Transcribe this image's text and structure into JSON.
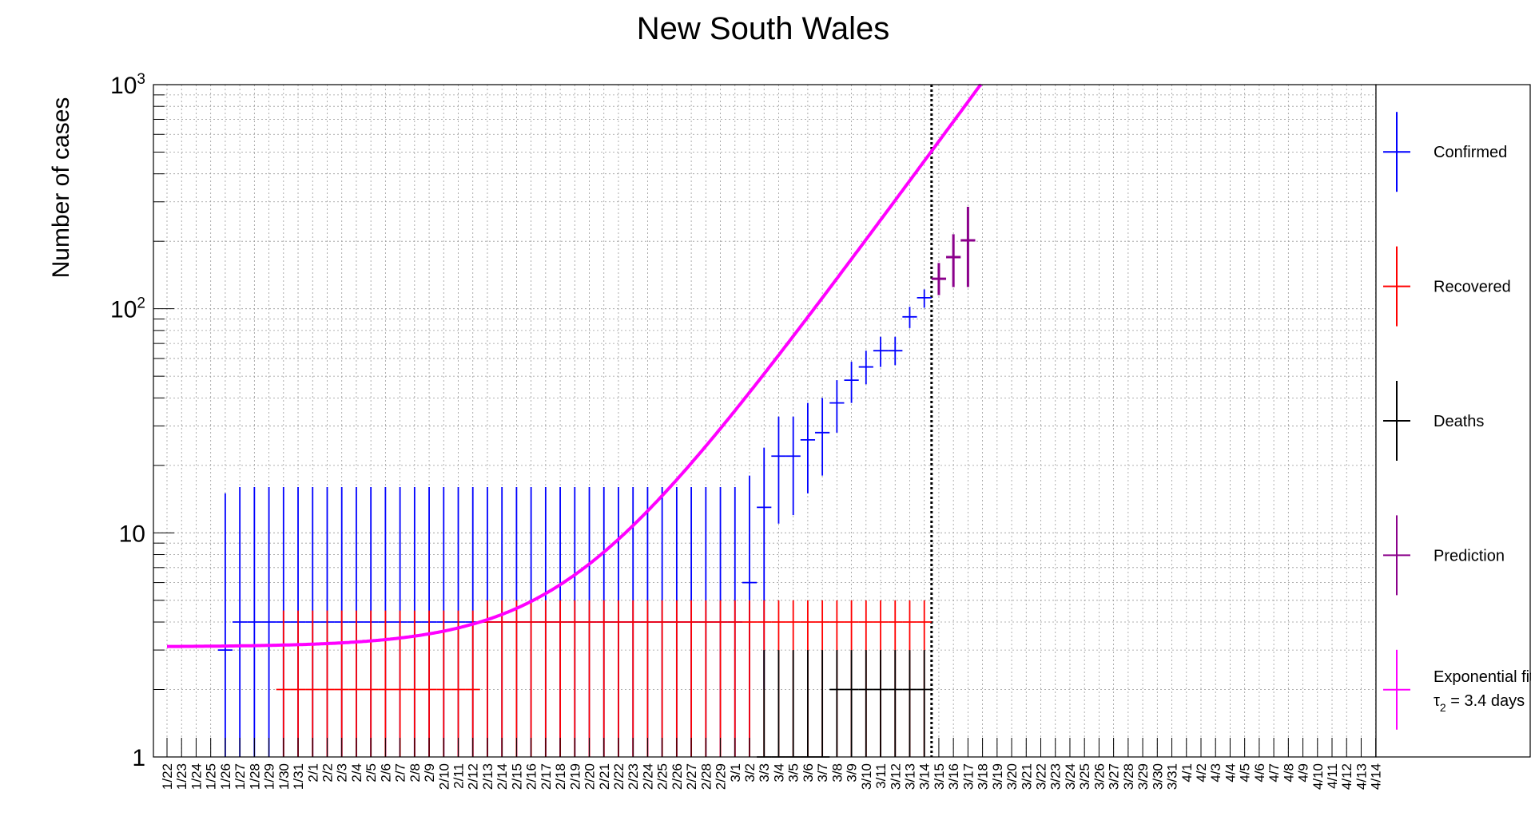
{
  "chart_data": {
    "type": "scatter",
    "title": "New South Wales",
    "ylabel": "Number of cases",
    "xlabel": "",
    "yscale": "log",
    "ylim": [
      1,
      1000
    ],
    "y_ticks": [
      {
        "value": 1,
        "base": "1",
        "exp": ""
      },
      {
        "value": 10,
        "base": "10",
        "exp": ""
      },
      {
        "value": 100,
        "base": "10",
        "exp": "2"
      },
      {
        "value": 1000,
        "base": "10",
        "exp": "3"
      }
    ],
    "grid": true,
    "legend_position": "right",
    "categories": [
      "1/22",
      "1/23",
      "1/24",
      "1/25",
      "1/26",
      "1/27",
      "1/28",
      "1/29",
      "1/30",
      "1/31",
      "2/1",
      "2/2",
      "2/3",
      "2/4",
      "2/5",
      "2/6",
      "2/7",
      "2/8",
      "2/9",
      "2/10",
      "2/11",
      "2/12",
      "2/13",
      "2/14",
      "2/15",
      "2/16",
      "2/17",
      "2/18",
      "2/19",
      "2/20",
      "2/21",
      "2/22",
      "2/23",
      "2/24",
      "2/25",
      "2/26",
      "2/27",
      "2/28",
      "2/29",
      "3/1",
      "3/2",
      "3/3",
      "3/4",
      "3/5",
      "3/6",
      "3/7",
      "3/8",
      "3/9",
      "3/10",
      "3/11",
      "3/12",
      "3/13",
      "3/14",
      "3/15",
      "3/16",
      "3/17",
      "3/18",
      "3/19",
      "3/20",
      "3/21",
      "3/22",
      "3/23",
      "3/24",
      "3/25",
      "3/26",
      "3/27",
      "3/28",
      "3/29",
      "3/30",
      "3/31",
      "4/1",
      "4/2",
      "4/3",
      "4/4",
      "4/5",
      "4/6",
      "4/7",
      "4/8",
      "4/9",
      "4/10",
      "4/11",
      "4/12",
      "4/13",
      "4/14"
    ],
    "vertical_marker": "3/14",
    "series": [
      {
        "name": "Confirmed",
        "color": "#0000ff",
        "points": [
          {
            "x": "1/26",
            "y": 3,
            "x_err": "1/26-1/26",
            "y_low": 1,
            "y_high": 15
          },
          {
            "x": "1/27",
            "y": 4,
            "y_low": 1,
            "y_high": 16
          },
          {
            "x": "1/28",
            "y": 4,
            "y_low": 1,
            "y_high": 16
          },
          {
            "x": "1/29",
            "y": 4,
            "y_low": 1,
            "y_high": 16
          },
          {
            "x": "1/30",
            "y": 4,
            "y_low": 1,
            "y_high": 16
          },
          {
            "x": "1/31",
            "y": 4,
            "y_low": 1,
            "y_high": 16
          },
          {
            "x": "2/1",
            "y": 4,
            "y_low": 1,
            "y_high": 16
          },
          {
            "x": "2/2",
            "y": 4,
            "y_low": 1,
            "y_high": 16
          },
          {
            "x": "2/3",
            "y": 4,
            "y_low": 1,
            "y_high": 16
          },
          {
            "x": "2/4",
            "y": 4,
            "y_low": 1,
            "y_high": 16
          },
          {
            "x": "2/5",
            "y": 4,
            "y_low": 1,
            "y_high": 16
          },
          {
            "x": "2/6",
            "y": 4,
            "y_low": 1,
            "y_high": 16
          },
          {
            "x": "2/7",
            "y": 4,
            "y_low": 1,
            "y_high": 16
          },
          {
            "x": "2/8",
            "y": 4,
            "y_low": 1,
            "y_high": 16
          },
          {
            "x": "2/9",
            "y": 4,
            "y_low": 1,
            "y_high": 16
          },
          {
            "x": "2/10",
            "y": 4,
            "y_low": 1,
            "y_high": 16
          },
          {
            "x": "2/11",
            "y": 4,
            "y_low": 1,
            "y_high": 16
          },
          {
            "x": "2/12",
            "y": 4,
            "y_low": 1,
            "y_high": 16
          },
          {
            "x": "2/13",
            "y": 4,
            "y_low": 1,
            "y_high": 16
          },
          {
            "x": "2/14",
            "y": 4,
            "y_low": 1,
            "y_high": 16
          },
          {
            "x": "2/15",
            "y": 4,
            "y_low": 1,
            "y_high": 16
          },
          {
            "x": "2/16",
            "y": 4,
            "y_low": 1,
            "y_high": 16
          },
          {
            "x": "2/17",
            "y": 4,
            "y_low": 1,
            "y_high": 16
          },
          {
            "x": "2/18",
            "y": 4,
            "y_low": 1,
            "y_high": 16
          },
          {
            "x": "2/19",
            "y": 4,
            "y_low": 1,
            "y_high": 16
          },
          {
            "x": "2/20",
            "y": 4,
            "y_low": 1,
            "y_high": 16
          },
          {
            "x": "2/21",
            "y": 4,
            "y_low": 1,
            "y_high": 16
          },
          {
            "x": "2/22",
            "y": 4,
            "y_low": 1,
            "y_high": 16
          },
          {
            "x": "2/23",
            "y": 4,
            "y_low": 1,
            "y_high": 16
          },
          {
            "x": "2/24",
            "y": 4,
            "y_low": 1,
            "y_high": 16
          },
          {
            "x": "2/25",
            "y": 4,
            "y_low": 1,
            "y_high": 16
          },
          {
            "x": "2/26",
            "y": 4,
            "y_low": 1,
            "y_high": 16
          },
          {
            "x": "2/27",
            "y": 4,
            "y_low": 1,
            "y_high": 16
          },
          {
            "x": "2/28",
            "y": 4,
            "y_low": 1,
            "y_high": 16
          },
          {
            "x": "2/29",
            "y": 4,
            "y_low": 1,
            "y_high": 16
          },
          {
            "x": "3/1",
            "y": 4,
            "y_low": 1,
            "y_high": 16
          },
          {
            "x": "3/2",
            "y": 6,
            "y_low": 1,
            "y_high": 18
          },
          {
            "x": "3/3",
            "y": 13,
            "y_low": 2,
            "y_high": 24
          },
          {
            "x": "3/4",
            "y": 22,
            "y_low": 11,
            "y_high": 33
          },
          {
            "x": "3/5",
            "y": 22,
            "y_low": 12,
            "y_high": 33
          },
          {
            "x": "3/6",
            "y": 26,
            "y_low": 15,
            "y_high": 38
          },
          {
            "x": "3/7",
            "y": 28,
            "y_low": 18,
            "y_high": 40
          },
          {
            "x": "3/8",
            "y": 38,
            "y_low": 28,
            "y_high": 48
          },
          {
            "x": "3/9",
            "y": 48,
            "y_low": 38,
            "y_high": 58
          },
          {
            "x": "3/10",
            "y": 55,
            "y_low": 46,
            "y_high": 65
          },
          {
            "x": "3/11",
            "y": 65,
            "y_low": 55,
            "y_high": 75
          },
          {
            "x": "3/12",
            "y": 65,
            "y_low": 56,
            "y_high": 75
          },
          {
            "x": "3/13",
            "y": 92,
            "y_low": 82,
            "y_high": 102
          },
          {
            "x": "3/14",
            "y": 112,
            "y_low": 101,
            "y_high": 122
          }
        ]
      },
      {
        "name": "Recovered",
        "color": "#ff0000",
        "points": [
          {
            "x": "1/30",
            "y": 2,
            "y_low": 1,
            "y_high": 4.5
          },
          {
            "x": "1/31",
            "y": 2,
            "y_low": 1,
            "y_high": 4.5
          },
          {
            "x": "2/1",
            "y": 2,
            "y_low": 1,
            "y_high": 4.5
          },
          {
            "x": "2/2",
            "y": 2,
            "y_low": 1,
            "y_high": 4.5
          },
          {
            "x": "2/3",
            "y": 2,
            "y_low": 1,
            "y_high": 4.5
          },
          {
            "x": "2/4",
            "y": 2,
            "y_low": 1,
            "y_high": 4.5
          },
          {
            "x": "2/5",
            "y": 2,
            "y_low": 1,
            "y_high": 4.5
          },
          {
            "x": "2/6",
            "y": 2,
            "y_low": 1,
            "y_high": 4.5
          },
          {
            "x": "2/7",
            "y": 2,
            "y_low": 1,
            "y_high": 4.5
          },
          {
            "x": "2/8",
            "y": 2,
            "y_low": 1,
            "y_high": 4.5
          },
          {
            "x": "2/9",
            "y": 2,
            "y_low": 1,
            "y_high": 4.5
          },
          {
            "x": "2/10",
            "y": 2,
            "y_low": 1,
            "y_high": 4.5
          },
          {
            "x": "2/11",
            "y": 2,
            "y_low": 1,
            "y_high": 4.5
          },
          {
            "x": "2/12",
            "y": 2,
            "y_low": 1,
            "y_high": 4.5
          },
          {
            "x": "2/13",
            "y": 4,
            "y_low": 1,
            "y_high": 5
          },
          {
            "x": "2/14",
            "y": 4,
            "y_low": 1,
            "y_high": 5
          },
          {
            "x": "2/15",
            "y": 4,
            "y_low": 1,
            "y_high": 5
          },
          {
            "x": "2/16",
            "y": 4,
            "y_low": 1,
            "y_high": 5
          },
          {
            "x": "2/17",
            "y": 4,
            "y_low": 1,
            "y_high": 5
          },
          {
            "x": "2/18",
            "y": 4,
            "y_low": 1,
            "y_high": 5
          },
          {
            "x": "2/19",
            "y": 4,
            "y_low": 1,
            "y_high": 5
          },
          {
            "x": "2/20",
            "y": 4,
            "y_low": 1,
            "y_high": 5
          },
          {
            "x": "2/21",
            "y": 4,
            "y_low": 1,
            "y_high": 5
          },
          {
            "x": "2/22",
            "y": 4,
            "y_low": 1,
            "y_high": 5
          },
          {
            "x": "2/23",
            "y": 4,
            "y_low": 1,
            "y_high": 5
          },
          {
            "x": "2/24",
            "y": 4,
            "y_low": 1,
            "y_high": 5
          },
          {
            "x": "2/25",
            "y": 4,
            "y_low": 1,
            "y_high": 5
          },
          {
            "x": "2/26",
            "y": 4,
            "y_low": 1,
            "y_high": 5
          },
          {
            "x": "2/27",
            "y": 4,
            "y_low": 1,
            "y_high": 5
          },
          {
            "x": "2/28",
            "y": 4,
            "y_low": 1,
            "y_high": 5
          },
          {
            "x": "2/29",
            "y": 4,
            "y_low": 1,
            "y_high": 5
          },
          {
            "x": "3/1",
            "y": 4,
            "y_low": 1,
            "y_high": 5
          },
          {
            "x": "3/2",
            "y": 4,
            "y_low": 1,
            "y_high": 5
          },
          {
            "x": "3/3",
            "y": 4,
            "y_low": 1,
            "y_high": 5
          },
          {
            "x": "3/4",
            "y": 4,
            "y_low": 1,
            "y_high": 5
          },
          {
            "x": "3/5",
            "y": 4,
            "y_low": 1,
            "y_high": 5
          },
          {
            "x": "3/6",
            "y": 4,
            "y_low": 1,
            "y_high": 5
          },
          {
            "x": "3/7",
            "y": 4,
            "y_low": 1,
            "y_high": 5
          },
          {
            "x": "3/8",
            "y": 4,
            "y_low": 1,
            "y_high": 5
          },
          {
            "x": "3/9",
            "y": 4,
            "y_low": 1,
            "y_high": 5
          },
          {
            "x": "3/10",
            "y": 4,
            "y_low": 1,
            "y_high": 5
          },
          {
            "x": "3/11",
            "y": 4,
            "y_low": 1,
            "y_high": 5
          },
          {
            "x": "3/12",
            "y": 4,
            "y_low": 1,
            "y_high": 5
          },
          {
            "x": "3/13",
            "y": 4,
            "y_low": 1,
            "y_high": 5
          },
          {
            "x": "3/14",
            "y": 4,
            "y_low": 1,
            "y_high": 5
          }
        ]
      },
      {
        "name": "Deaths",
        "color": "#000000",
        "points": [
          {
            "x": "3/3",
            "y": 1,
            "y_low": 1,
            "y_high": 3
          },
          {
            "x": "3/4",
            "y": 1,
            "y_low": 1,
            "y_high": 3
          },
          {
            "x": "3/5",
            "y": 1,
            "y_low": 1,
            "y_high": 3
          },
          {
            "x": "3/6",
            "y": 1,
            "y_low": 1,
            "y_high": 3
          },
          {
            "x": "3/7",
            "y": 1,
            "y_low": 1,
            "y_high": 3
          },
          {
            "x": "3/8",
            "y": 2,
            "y_low": 1,
            "y_high": 3
          },
          {
            "x": "3/9",
            "y": 2,
            "y_low": 1,
            "y_high": 3
          },
          {
            "x": "3/10",
            "y": 2,
            "y_low": 1,
            "y_high": 3
          },
          {
            "x": "3/11",
            "y": 2,
            "y_low": 1,
            "y_high": 3
          },
          {
            "x": "3/12",
            "y": 2,
            "y_low": 1,
            "y_high": 3
          },
          {
            "x": "3/13",
            "y": 2,
            "y_low": 1,
            "y_high": 3
          },
          {
            "x": "3/14",
            "y": 2,
            "y_low": 1,
            "y_high": 3
          }
        ]
      },
      {
        "name": "Prediction",
        "color": "#8b008b",
        "points": [
          {
            "x": "3/15",
            "y": 136,
            "y_low": 115,
            "y_high": 160
          },
          {
            "x": "3/16",
            "y": 170,
            "y_low": 125,
            "y_high": 215
          },
          {
            "x": "3/17",
            "y": 202,
            "y_low": 125,
            "y_high": 285
          }
        ]
      },
      {
        "name": "Exponential fit",
        "color": "#ff00ff",
        "type": "line",
        "model": {
          "baseline": 3.1,
          "amplitude": 1.0,
          "t0": "2/13",
          "doubling_days": 3.4
        },
        "x_start": "1/22",
        "x_end": "3/25"
      }
    ],
    "legend": [
      {
        "label": "Confirmed",
        "color": "#0000ff"
      },
      {
        "label": "Recovered",
        "color": "#ff0000"
      },
      {
        "label": "Deaths",
        "color": "#000000"
      },
      {
        "label": "Prediction",
        "color": "#8b008b"
      },
      {
        "label": "Exponential fit",
        "sub_label_prefix": "τ",
        "sub_label_subscript": "2",
        "sub_label_suffix": " = 3.4 days",
        "color": "#ff00ff"
      }
    ]
  }
}
